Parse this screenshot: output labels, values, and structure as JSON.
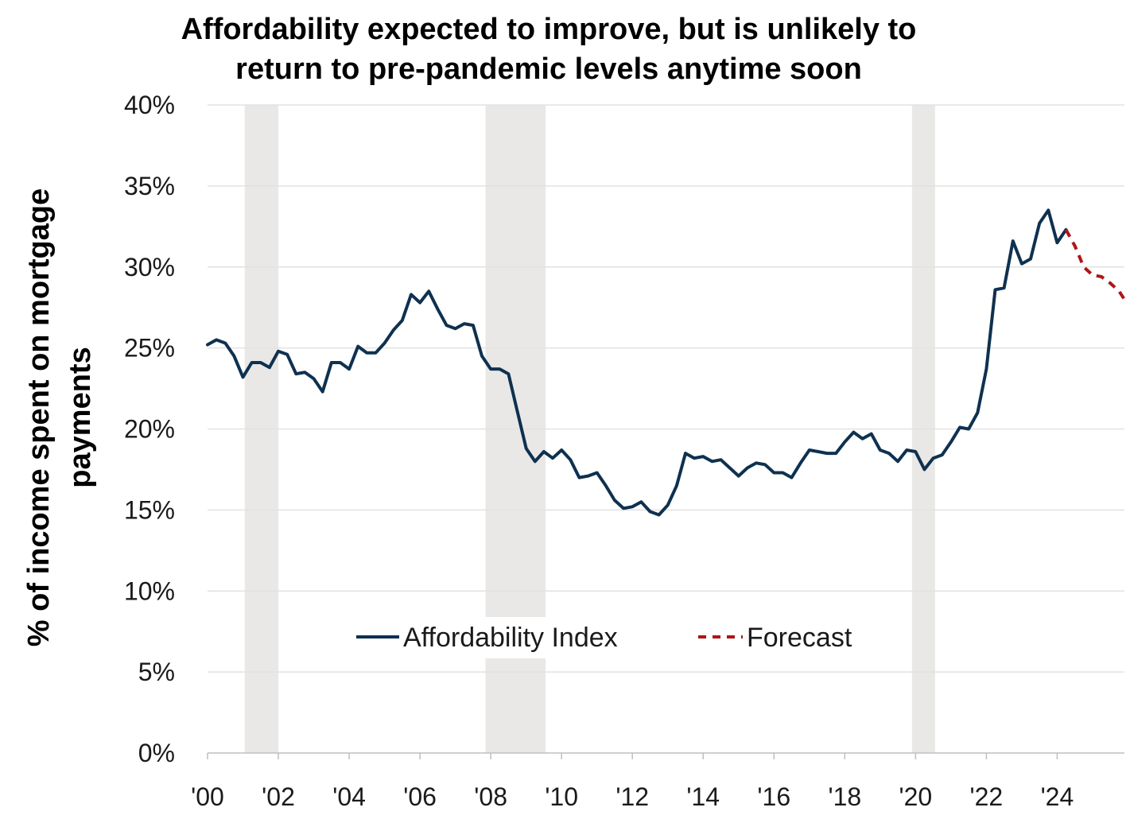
{
  "chart_data": {
    "type": "line",
    "title": "Affordability expected to improve, but is unlikely to return to pre-pandemic levels anytime soon",
    "xlabel": "",
    "ylabel": "% of income spent on mortgage payments",
    "ylim": [
      0,
      40
    ],
    "xlim": [
      2000.0,
      2025.9
    ],
    "yticks": [
      0,
      5,
      10,
      15,
      20,
      25,
      30,
      35,
      40
    ],
    "ytick_labels": [
      "0%",
      "5%",
      "10%",
      "15%",
      "20%",
      "25%",
      "30%",
      "35%",
      "40%"
    ],
    "xticks": [
      2000,
      2002,
      2004,
      2006,
      2008,
      2010,
      2012,
      2014,
      2016,
      2018,
      2020,
      2022,
      2024
    ],
    "xtick_labels": [
      "'00",
      "'02",
      "'04",
      "'06",
      "'08",
      "'10",
      "'12",
      "'14",
      "'16",
      "'18",
      "'20",
      "'22",
      "'24"
    ],
    "grid": true,
    "legend_position": "bottom-center",
    "recessions": [
      [
        2001.05,
        2002.0
      ],
      [
        2007.85,
        2009.55
      ],
      [
        2019.9,
        2020.55
      ]
    ],
    "series": [
      {
        "name": "Affordability Index",
        "color": "#0f3150",
        "style": "solid",
        "x": [
          2000.0,
          2000.25,
          2000.5,
          2000.75,
          2001.0,
          2001.25,
          2001.5,
          2001.75,
          2002.0,
          2002.25,
          2002.5,
          2002.75,
          2003.0,
          2003.25,
          2003.5,
          2003.75,
          2004.0,
          2004.25,
          2004.5,
          2004.75,
          2005.0,
          2005.25,
          2005.5,
          2005.75,
          2006.0,
          2006.25,
          2006.5,
          2006.75,
          2007.0,
          2007.25,
          2007.5,
          2007.75,
          2008.0,
          2008.25,
          2008.5,
          2008.75,
          2009.0,
          2009.25,
          2009.5,
          2009.75,
          2010.0,
          2010.25,
          2010.5,
          2010.75,
          2011.0,
          2011.25,
          2011.5,
          2011.75,
          2012.0,
          2012.25,
          2012.5,
          2012.75,
          2013.0,
          2013.25,
          2013.5,
          2013.75,
          2014.0,
          2014.25,
          2014.5,
          2014.75,
          2015.0,
          2015.25,
          2015.5,
          2015.75,
          2016.0,
          2016.25,
          2016.5,
          2016.75,
          2017.0,
          2017.25,
          2017.5,
          2017.75,
          2018.0,
          2018.25,
          2018.5,
          2018.75,
          2019.0,
          2019.25,
          2019.5,
          2019.75,
          2020.0,
          2020.25,
          2020.5,
          2020.75,
          2021.0,
          2021.25,
          2021.5,
          2021.75,
          2022.0,
          2022.25,
          2022.5,
          2022.75,
          2023.0,
          2023.25,
          2023.5,
          2023.75,
          2024.0,
          2024.25
        ],
        "values": [
          25.2,
          25.5,
          25.3,
          24.5,
          23.2,
          24.1,
          24.1,
          23.8,
          24.8,
          24.6,
          23.4,
          23.5,
          23.1,
          22.3,
          24.1,
          24.1,
          23.7,
          25.1,
          24.7,
          24.7,
          25.3,
          26.1,
          26.7,
          28.3,
          27.8,
          28.5,
          27.4,
          26.4,
          26.2,
          26.5,
          26.4,
          24.5,
          23.7,
          23.7,
          23.4,
          21.1,
          18.8,
          18.0,
          18.6,
          18.2,
          18.7,
          18.1,
          17.0,
          17.1,
          17.3,
          16.5,
          15.6,
          15.1,
          15.2,
          15.5,
          14.9,
          14.7,
          15.3,
          16.5,
          18.5,
          18.2,
          18.3,
          18.0,
          18.1,
          17.6,
          17.1,
          17.6,
          17.9,
          17.8,
          17.3,
          17.3,
          17.0,
          17.9,
          18.7,
          18.6,
          18.5,
          18.5,
          19.2,
          19.8,
          19.4,
          19.7,
          18.7,
          18.5,
          18.0,
          18.7,
          18.6,
          17.5,
          18.2,
          18.4,
          19.2,
          20.1,
          20.0,
          21.0,
          23.7,
          28.6,
          28.7,
          31.6,
          30.2,
          30.5,
          32.7,
          33.5,
          31.5,
          32.3
        ]
      },
      {
        "name": "Forecast",
        "color": "#b01515",
        "style": "dashed",
        "x": [
          2024.25,
          2024.5,
          2024.75,
          2025.0,
          2025.25,
          2025.5,
          2025.75,
          2025.9
        ],
        "values": [
          32.3,
          31.3,
          30.0,
          29.5,
          29.4,
          29.0,
          28.5,
          28.0
        ]
      }
    ]
  }
}
